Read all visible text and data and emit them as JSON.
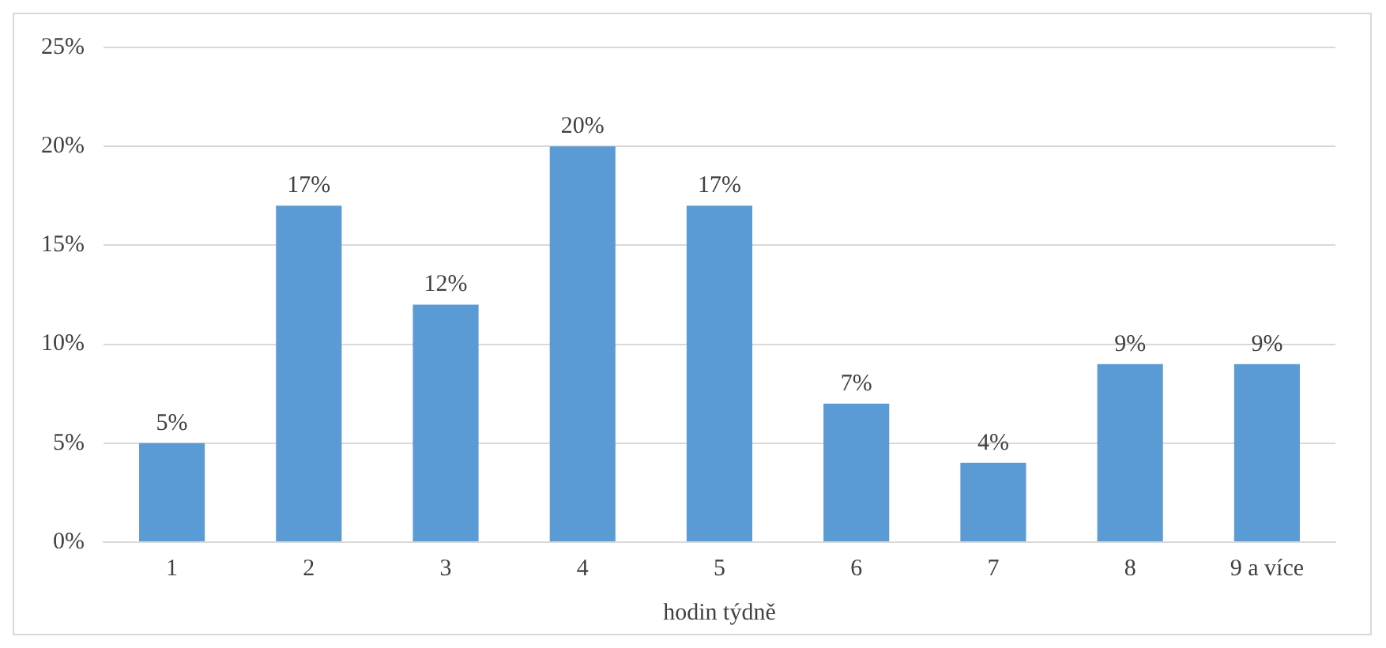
{
  "chart_data": {
    "type": "bar",
    "xlabel": "hodin týdně",
    "categories": [
      "1",
      "2",
      "3",
      "4",
      "5",
      "6",
      "7",
      "8",
      "9 a více"
    ],
    "values": [
      5,
      17,
      12,
      20,
      17,
      7,
      4,
      9,
      9
    ],
    "value_labels": [
      "5%",
      "17%",
      "12%",
      "20%",
      "17%",
      "7%",
      "4%",
      "9%",
      "9%"
    ],
    "color": "#5b9bd5",
    "ylim": [
      0,
      25
    ],
    "yticks": [
      {
        "value": 0,
        "label": "0%"
      },
      {
        "value": 5,
        "label": "5%"
      },
      {
        "value": 10,
        "label": "10%"
      },
      {
        "value": 15,
        "label": "15%"
      },
      {
        "value": 20,
        "label": "20%"
      },
      {
        "value": 25,
        "label": "25%"
      }
    ],
    "grid": "y"
  }
}
